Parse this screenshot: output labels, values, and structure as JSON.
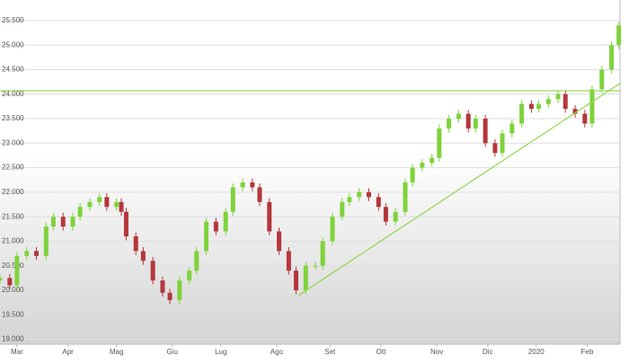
{
  "chart_data": {
    "type": "candlestick",
    "x": [
      0,
      4,
      7,
      11,
      15,
      19,
      22,
      26,
      30,
      33,
      37,
      41,
      44,
      48,
      50,
      52,
      56,
      59,
      63,
      67,
      70,
      74,
      78,
      81,
      85,
      89,
      93,
      96,
      100,
      104,
      107,
      111,
      115,
      119,
      122,
      126,
      130,
      133,
      137,
      141,
      144,
      148,
      152,
      156,
      159,
      163,
      167,
      170,
      174,
      178,
      181,
      185,
      189,
      193,
      196,
      200,
      204,
      207,
      211,
      215,
      219,
      222,
      226,
      230,
      233,
      237,
      241,
      244,
      248,
      252,
      255
    ],
    "open": [
      20200,
      20250,
      20100,
      20700,
      20800,
      20700,
      21300,
      21500,
      21300,
      21500,
      21700,
      21800,
      21900,
      21700,
      21800,
      21600,
      21100,
      20800,
      20600,
      20200,
      19950,
      19800,
      20200,
      20400,
      20800,
      21400,
      21200,
      21600,
      22100,
      22200,
      22100,
      21800,
      21200,
      20800,
      20400,
      20000,
      20500,
      20500,
      21000,
      21500,
      21800,
      21900,
      22000,
      21900,
      21700,
      21400,
      21600,
      22200,
      22500,
      22600,
      22700,
      23300,
      23500,
      23600,
      23300,
      23500,
      23000,
      22800,
      23200,
      23400,
      23800,
      23700,
      23800,
      23900,
      24000,
      23700,
      23600,
      23400,
      24100,
      24500,
      25000
    ],
    "high": [
      20330,
      20330,
      20780,
      20880,
      20880,
      21380,
      21580,
      21580,
      21580,
      21780,
      21880,
      21980,
      21980,
      21880,
      21880,
      21680,
      21180,
      20880,
      20680,
      20280,
      20030,
      20280,
      20480,
      20880,
      21480,
      21480,
      21680,
      22180,
      22280,
      22280,
      22180,
      21880,
      21280,
      20880,
      20480,
      20580,
      20580,
      21080,
      21580,
      21880,
      21980,
      22080,
      22080,
      21980,
      21780,
      21680,
      22280,
      22580,
      22680,
      22780,
      23380,
      23580,
      23680,
      23680,
      23580,
      23580,
      23080,
      23280,
      23480,
      23880,
      23880,
      23880,
      23980,
      24080,
      24080,
      23780,
      23680,
      24180,
      24580,
      25080,
      25480
    ],
    "low": [
      20120,
      20020,
      20020,
      20620,
      20620,
      20620,
      21220,
      21220,
      21220,
      21420,
      21620,
      21720,
      21620,
      21620,
      21520,
      21020,
      20720,
      20520,
      20120,
      19870,
      19720,
      19720,
      20120,
      20320,
      20720,
      21120,
      21120,
      21520,
      22020,
      22020,
      21720,
      21120,
      20720,
      20320,
      19920,
      19920,
      20420,
      20420,
      20920,
      21420,
      21720,
      21820,
      21820,
      21620,
      21320,
      21320,
      21520,
      22120,
      22420,
      22520,
      22620,
      23220,
      23420,
      23220,
      23220,
      22920,
      22720,
      22720,
      23120,
      23320,
      23620,
      23620,
      23720,
      23820,
      23620,
      23520,
      23320,
      23320,
      24020,
      24420,
      24920
    ],
    "close": [
      20250,
      20100,
      20700,
      20800,
      20700,
      21300,
      21500,
      21300,
      21500,
      21700,
      21800,
      21900,
      21700,
      21800,
      21600,
      21100,
      20800,
      20600,
      20200,
      19950,
      19800,
      20200,
      20400,
      20800,
      21400,
      21200,
      21600,
      22100,
      22200,
      22100,
      21800,
      21200,
      20800,
      20400,
      20000,
      20500,
      20500,
      21000,
      21500,
      21800,
      21900,
      22000,
      21900,
      21700,
      21400,
      21600,
      22200,
      22500,
      22600,
      22700,
      23300,
      23500,
      23600,
      23300,
      23500,
      23000,
      22800,
      23200,
      23400,
      23800,
      23700,
      23800,
      23900,
      24000,
      23700,
      23600,
      23400,
      24100,
      24500,
      25000,
      25400
    ],
    "up_color": "#7ed33a",
    "down_color": "#b4363c",
    "line_color": "#8fd64a",
    "hline": 24070,
    "trendline": {
      "x": [
        123,
        255.5
      ],
      "y": [
        19897,
        24220
      ]
    },
    "xlim": [
      0,
      255.5
    ],
    "ylim": [
      18900,
      25920
    ],
    "xticks": [
      {
        "value": 7,
        "label": "Mar"
      },
      {
        "value": 28,
        "label": "Apr"
      },
      {
        "value": 48,
        "label": "Mag"
      },
      {
        "value": 71,
        "label": "Giu"
      },
      {
        "value": 91,
        "label": "Lug"
      },
      {
        "value": 114,
        "label": "Ago"
      },
      {
        "value": 136,
        "label": "Set"
      },
      {
        "value": 157,
        "label": "Ott"
      },
      {
        "value": 180,
        "label": "Nov"
      },
      {
        "value": 201,
        "label": "Dic"
      },
      {
        "value": 221,
        "label": "2020"
      },
      {
        "value": 242,
        "label": "Feb"
      }
    ],
    "yticks": [
      {
        "value": 19000,
        "label": "19.000"
      },
      {
        "value": 19500,
        "label": "19.500"
      },
      {
        "value": 20000,
        "label": "20.000"
      },
      {
        "value": 20500,
        "label": "20.500"
      },
      {
        "value": 21000,
        "label": "21.000"
      },
      {
        "value": 21500,
        "label": "21.500"
      },
      {
        "value": 22000,
        "label": "22.000"
      },
      {
        "value": 22500,
        "label": "22.500"
      },
      {
        "value": 23000,
        "label": "23.000"
      },
      {
        "value": 23500,
        "label": "23.500"
      },
      {
        "value": 24000,
        "label": "24.000"
      },
      {
        "value": 24500,
        "label": "24.500"
      },
      {
        "value": 25000,
        "label": "25.000"
      },
      {
        "value": 25500,
        "label": "25.500"
      }
    ],
    "grid": true
  }
}
